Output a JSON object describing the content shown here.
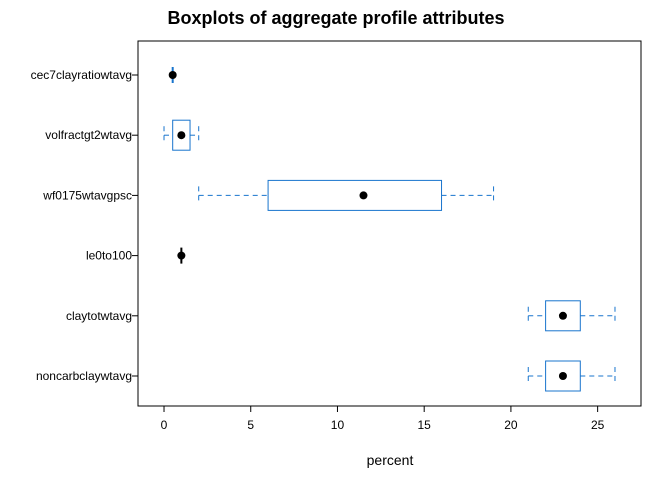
{
  "chart_data": {
    "type": "boxplot",
    "title": "Boxplots of aggregate profile attributes",
    "xlabel": "percent",
    "ylabel": "",
    "xlim": [
      -1.5,
      27.5
    ],
    "xticks": [
      "0",
      "5",
      "10",
      "15",
      "20",
      "25"
    ],
    "grid": false,
    "legend": "none",
    "colors": {
      "box": "#1874CD",
      "median_point": "#000000",
      "frame": "#000000"
    },
    "categories": [
      "cec7clayratiowtavg",
      "volfractgt2wtavg",
      "wf0175wtavgpsc",
      "le0to100",
      "claytotwtavg",
      "noncarbclaywtavg"
    ],
    "boxes": [
      {
        "label": "cec7clayratiowtavg",
        "min": 0.5,
        "q1": 0.5,
        "median": 0.5,
        "q3": 0.6,
        "max": 0.6
      },
      {
        "label": "volfractgt2wtavg",
        "min": 0,
        "q1": 0.5,
        "median": 1,
        "q3": 1.5,
        "max": 2
      },
      {
        "label": "wf0175wtavgpsc",
        "min": 2,
        "q1": 6,
        "median": 11.5,
        "q3": 16,
        "max": 19
      },
      {
        "label": "le0to100",
        "min": 1,
        "q1": 1,
        "median": 1,
        "q3": 1,
        "max": 1
      },
      {
        "label": "claytotwtavg",
        "min": 21,
        "q1": 22,
        "median": 23,
        "q3": 24,
        "max": 26
      },
      {
        "label": "noncarbclaywtavg",
        "min": 21,
        "q1": 22,
        "median": 23,
        "q3": 24,
        "max": 26
      }
    ]
  }
}
